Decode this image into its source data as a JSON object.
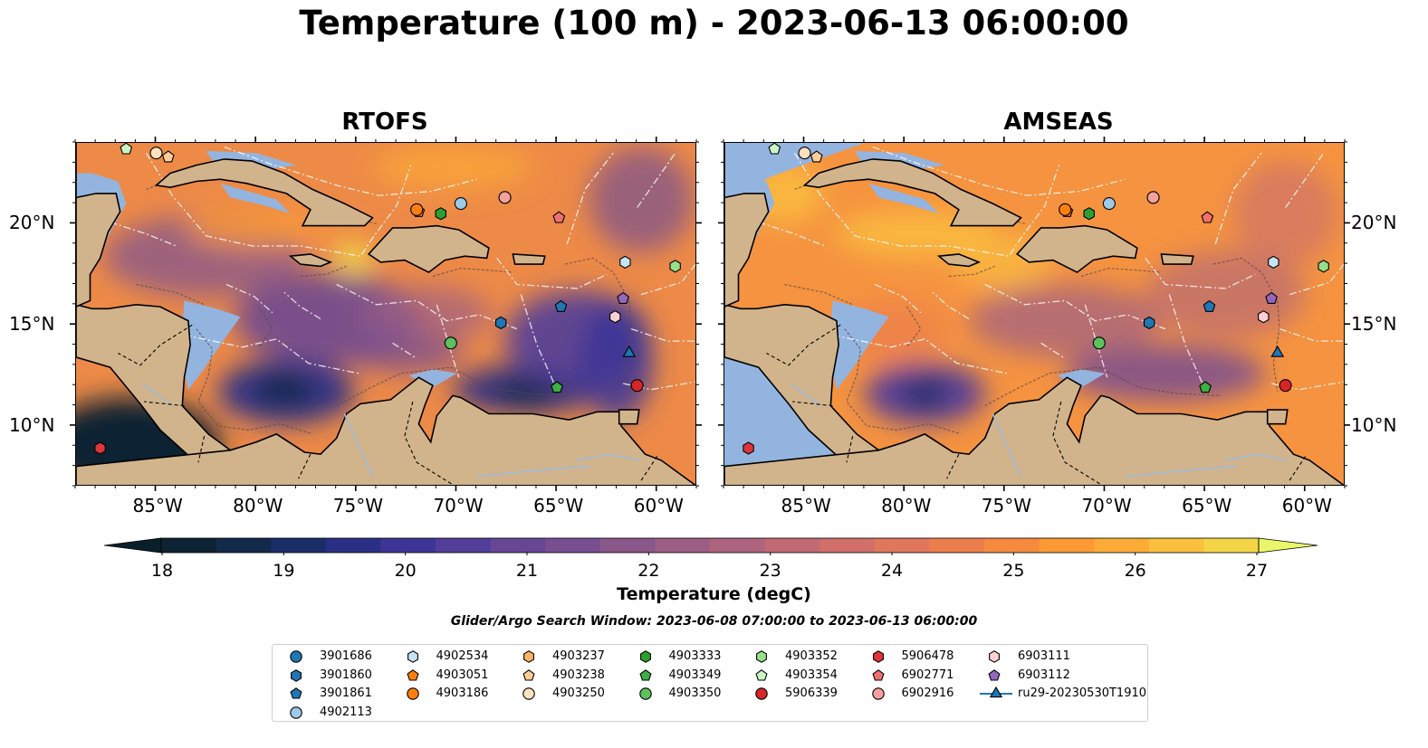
{
  "title": "Temperature (100 m) - 2023-06-13 06:00:00",
  "panels": [
    {
      "id": "rtofs",
      "title": "RTOFS"
    },
    {
      "id": "amseas",
      "title": "AMSEAS"
    }
  ],
  "map_extent": {
    "lon": [
      -89,
      -58
    ],
    "lat": [
      7,
      24
    ]
  },
  "lon_ticks": [
    {
      "value": -85,
      "label": "85°W"
    },
    {
      "value": -80,
      "label": "80°W"
    },
    {
      "value": -75,
      "label": "75°W"
    },
    {
      "value": -70,
      "label": "70°W"
    },
    {
      "value": -65,
      "label": "65°W"
    },
    {
      "value": -60,
      "label": "60°W"
    }
  ],
  "lat_ticks": [
    {
      "value": 20,
      "label": "20°N"
    },
    {
      "value": 15,
      "label": "15°N"
    },
    {
      "value": 10,
      "label": "10°N"
    }
  ],
  "colorbar": {
    "label": "Temperature (degC)",
    "min": 18,
    "max": 27,
    "ticks": [
      "18",
      "19",
      "20",
      "21",
      "22",
      "23",
      "24",
      "25",
      "26",
      "27"
    ],
    "colors": [
      "#0d2333",
      "#12294a",
      "#1b2d66",
      "#2a2f86",
      "#3c3596",
      "#523d99",
      "#664695",
      "#784e90",
      "#8a578a",
      "#9c5e85",
      "#ae647e",
      "#c16a74",
      "#d16f6a",
      "#e0765b",
      "#ec7e4c",
      "#f58a3e",
      "#fb9a35",
      "#fcab37",
      "#fbbf3f",
      "#f3d547"
    ],
    "extend_low_color": "#0a1f2c",
    "extend_high_color": "#ecf66a"
  },
  "search_window": "Glider/Argo Search Window: 2023-06-08 07:00:00 to 2023-06-13 06:00:00",
  "colors": {
    "land": "#d2b48c",
    "shallow_water": "#94b4e0"
  },
  "floats": [
    {
      "name": "3901686",
      "marker": "circle",
      "color": "#1f77b4"
    },
    {
      "name": "3901860",
      "marker": "hexagon",
      "color": "#1f77b4"
    },
    {
      "name": "3901861",
      "marker": "pentagon",
      "color": "#1f77b4"
    },
    {
      "name": "4902113",
      "marker": "circle",
      "color": "#9ecae9"
    },
    {
      "name": "4902534",
      "marker": "hexagon",
      "color": "#c6e4f5"
    },
    {
      "name": "4903051",
      "marker": "pentagon",
      "color": "#ff7f0e"
    },
    {
      "name": "4903186",
      "marker": "circle",
      "color": "#ff7f0e"
    },
    {
      "name": "4903237",
      "marker": "hexagon",
      "color": "#ffb366"
    },
    {
      "name": "4903238",
      "marker": "pentagon",
      "color": "#ffcc99"
    },
    {
      "name": "4903250",
      "marker": "circle",
      "color": "#ffe0bf"
    },
    {
      "name": "4903333",
      "marker": "hexagon",
      "color": "#2ca02c"
    },
    {
      "name": "4903349",
      "marker": "pentagon",
      "color": "#3cb043"
    },
    {
      "name": "4903350",
      "marker": "circle",
      "color": "#5dc15d"
    },
    {
      "name": "4903352",
      "marker": "hexagon",
      "color": "#98df8a"
    },
    {
      "name": "4903354",
      "marker": "pentagon",
      "color": "#ccf5c4"
    },
    {
      "name": "5906339",
      "marker": "circle",
      "color": "#d62728"
    },
    {
      "name": "5906478",
      "marker": "hexagon",
      "color": "#e0353a"
    },
    {
      "name": "6902771",
      "marker": "pentagon",
      "color": "#f0706f"
    },
    {
      "name": "6902916",
      "marker": "circle",
      "color": "#f5a09c"
    },
    {
      "name": "6903111",
      "marker": "hexagon",
      "color": "#fbd0d0"
    },
    {
      "name": "6903112",
      "marker": "pentagon",
      "color": "#9467bd"
    },
    {
      "name": "ru29-20230530T1910",
      "marker": "triangle",
      "color": "#1f77b4",
      "line": true
    }
  ],
  "positions": [
    {
      "float": "3901860",
      "lon": -67.8,
      "lat": 15.1
    },
    {
      "float": "3901861",
      "lon": -64.8,
      "lat": 15.9
    },
    {
      "float": "4902113",
      "lon": -69.8,
      "lat": 21.0
    },
    {
      "float": "4902534",
      "lon": -61.6,
      "lat": 18.1
    },
    {
      "float": "4903051",
      "lon": -71.9,
      "lat": 20.6
    },
    {
      "float": "4903186",
      "lon": -72.0,
      "lat": 20.7
    },
    {
      "float": "4903238",
      "lon": -84.4,
      "lat": 23.3
    },
    {
      "float": "4903250",
      "lon": -85.0,
      "lat": 23.5
    },
    {
      "float": "4903333",
      "lon": -70.8,
      "lat": 20.5
    },
    {
      "float": "4903349",
      "lon": -65.0,
      "lat": 11.9
    },
    {
      "float": "4903350",
      "lon": -70.3,
      "lat": 14.1
    },
    {
      "float": "4903352",
      "lon": -59.1,
      "lat": 17.9
    },
    {
      "float": "4903354",
      "lon": -86.5,
      "lat": 23.7
    },
    {
      "float": "5906339",
      "lon": -61.0,
      "lat": 12.0
    },
    {
      "float": "5906478",
      "lon": -87.8,
      "lat": 8.9
    },
    {
      "float": "6902771",
      "lon": -64.9,
      "lat": 20.3
    },
    {
      "float": "6902916",
      "lon": -67.6,
      "lat": 21.3
    },
    {
      "float": "6903111",
      "lon": -62.1,
      "lat": 15.4
    },
    {
      "float": "6903112",
      "lon": -61.7,
      "lat": 16.3
    },
    {
      "float": "ru29-20230530T1910",
      "lon": -61.4,
      "lat": 13.6
    }
  ]
}
